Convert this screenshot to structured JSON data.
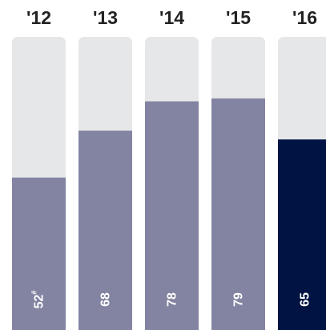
{
  "chart_data": {
    "type": "bar",
    "categories": [
      "'12",
      "'13",
      "'14",
      "'15",
      "'16"
    ],
    "values": [
      52,
      68,
      78,
      79,
      65
    ],
    "value_labels": [
      "52",
      "68",
      "78",
      "79",
      "65"
    ],
    "footnote_marks": [
      "#",
      "",
      "",
      "",
      ""
    ],
    "ylim": [
      0,
      100
    ],
    "highlight_index": 4,
    "title": "",
    "xlabel": "",
    "ylabel": "",
    "grid": false,
    "legend": "none"
  },
  "colors": {
    "track": "#e6e7e9",
    "bar": "#8384a2",
    "highlight": "#001342",
    "year_text": "#222222",
    "value_text": "#ffffff"
  }
}
